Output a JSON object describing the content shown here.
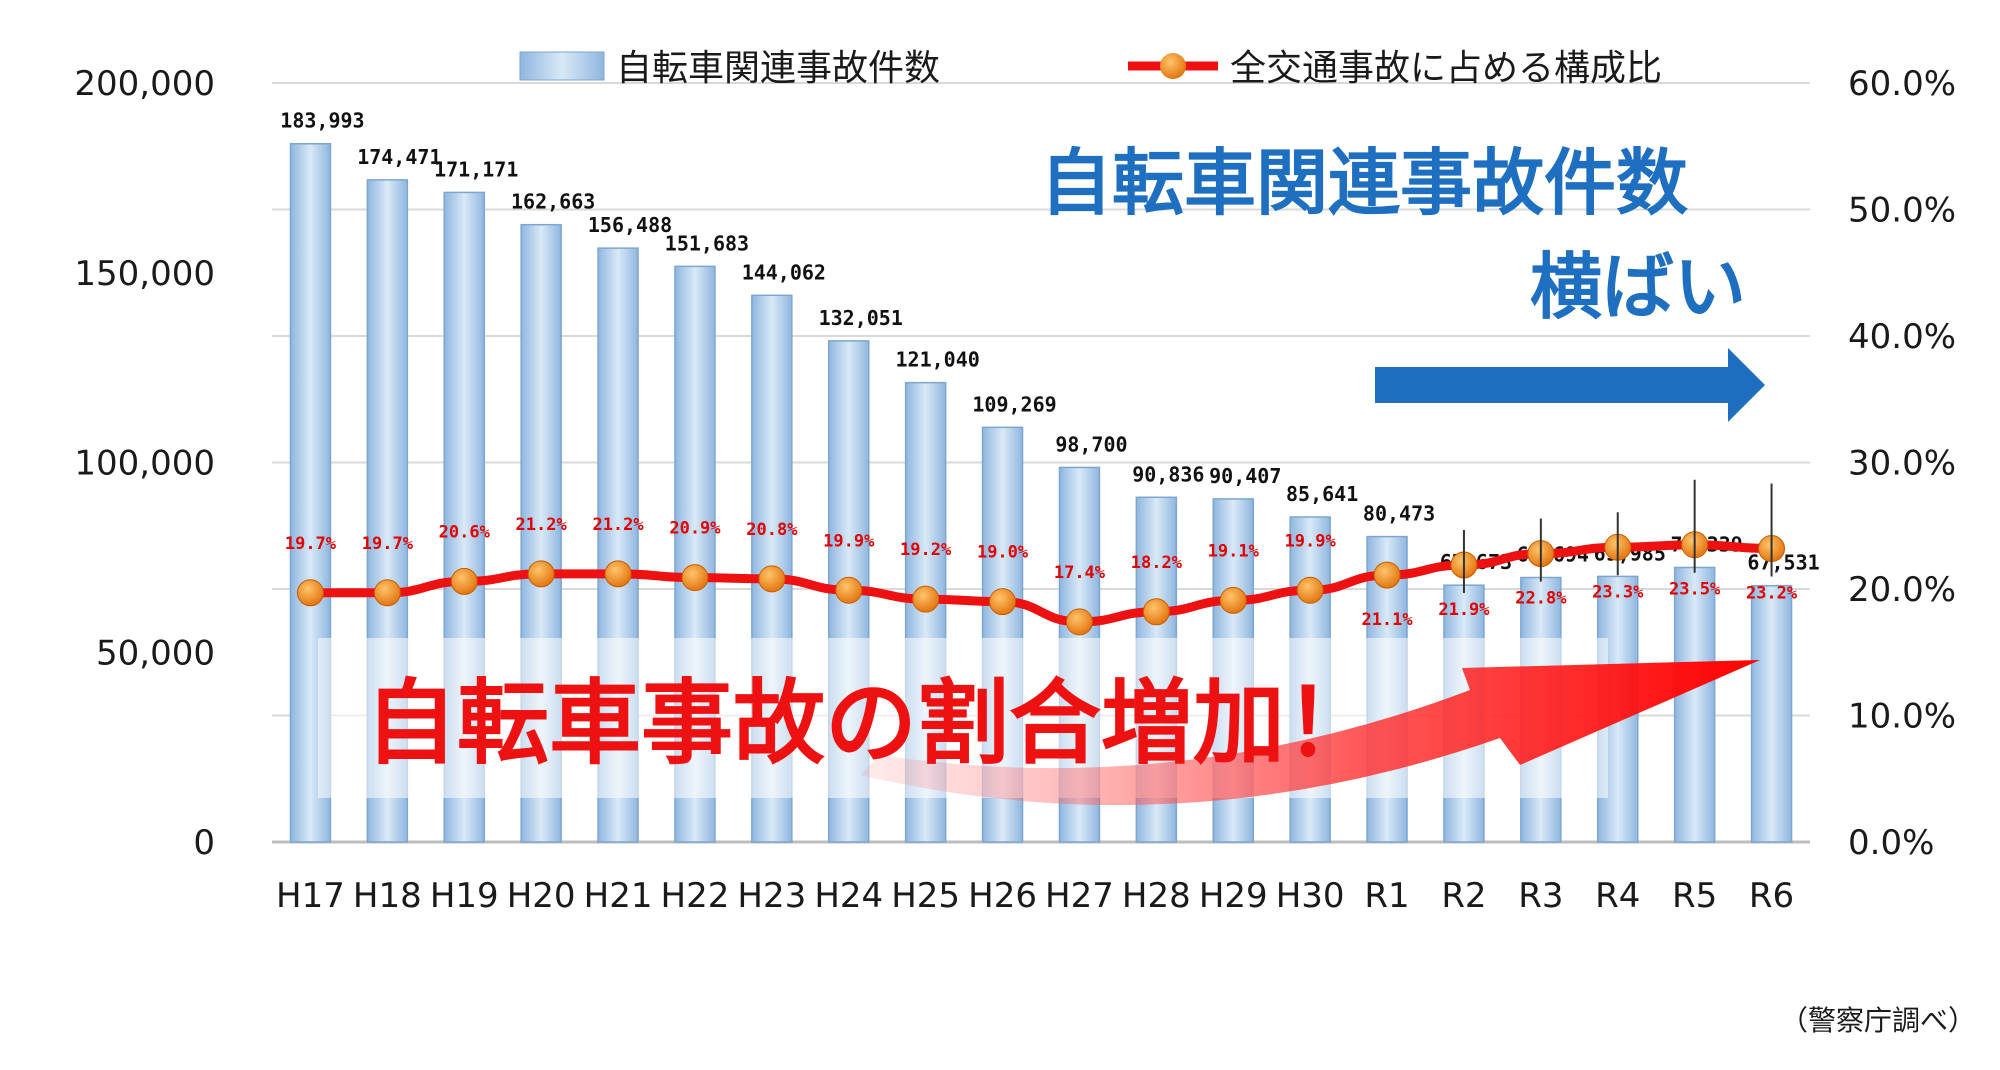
{
  "chart_data": {
    "type": "bar+line",
    "categories": [
      "H17",
      "H18",
      "H19",
      "H20",
      "H21",
      "H22",
      "H23",
      "H24",
      "H25",
      "H26",
      "H27",
      "H28",
      "H29",
      "H30",
      "R1",
      "R2",
      "R3",
      "R4",
      "R5",
      "R6"
    ],
    "series": [
      {
        "name": "自転車関連事故件数",
        "type": "bar",
        "axis": "left",
        "color": "#a8c8e8",
        "values": [
          183993,
          174471,
          171171,
          162663,
          156488,
          151683,
          144062,
          132051,
          121040,
          109269,
          98700,
          90836,
          90407,
          85641,
          80473,
          67673,
          69694,
          69985,
          72339,
          67531
        ],
        "labels": [
          "183,993",
          "174,471",
          "171,171",
          "162,663",
          "156,488",
          "151,683",
          "144,062",
          "132,051",
          "121,040",
          "109,269",
          "98,700",
          "90,836",
          "90,407",
          "85,641",
          "80,473",
          "67,673",
          "69,694",
          "69,985",
          "72,339",
          "67,531"
        ]
      },
      {
        "name": "全交通事故に占める構成比",
        "type": "line",
        "axis": "right",
        "color": "#ee1111",
        "marker_color": "#f08a1c",
        "values": [
          19.7,
          19.7,
          20.6,
          21.2,
          21.2,
          20.9,
          20.8,
          19.9,
          19.2,
          19.0,
          17.4,
          18.2,
          19.1,
          19.9,
          21.1,
          21.9,
          22.8,
          23.3,
          23.5,
          23.2
        ],
        "labels": [
          "19.7%",
          "19.7%",
          "20.6%",
          "21.2%",
          "21.2%",
          "20.9%",
          "20.8%",
          "19.9%",
          "19.2%",
          "19.0%",
          "17.4%",
          "18.2%",
          "19.1%",
          "19.9%",
          "21.1%",
          "21.9%",
          "22.8%",
          "23.3%",
          "23.5%",
          "23.2%"
        ]
      }
    ],
    "y_left": {
      "min": 0,
      "max": 200000,
      "ticks": [
        "0",
        "50,000",
        "100,000",
        "150,000",
        "200,000"
      ]
    },
    "y_right": {
      "min": 0,
      "max": 60,
      "ticks": [
        "0.0%",
        "10.0%",
        "20.0%",
        "30.0%",
        "40.0%",
        "50.0%",
        "60.0%"
      ]
    },
    "grid": true,
    "legend": "top-center"
  },
  "annotations": {
    "blue_line1": "自転車関連事故件数",
    "blue_line2": "横ばい",
    "red_text": "自転車事故の割合増加！"
  },
  "source": "（警察庁調べ）"
}
